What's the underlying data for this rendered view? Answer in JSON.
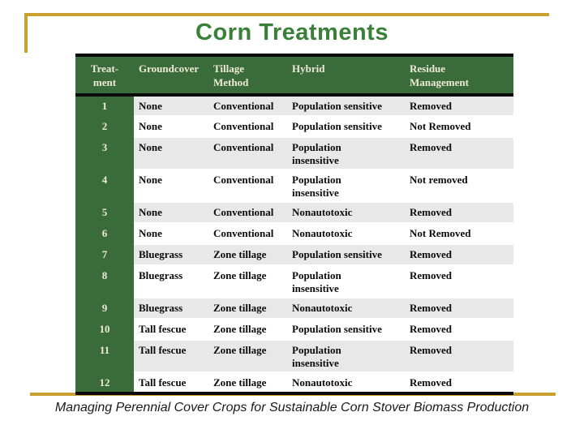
{
  "title": "Corn Treatments",
  "caption": "Managing Perennial Cover Crops for Sustainable Corn Stover Biomass Production",
  "table": {
    "headers": {
      "treatment": "Treat-\nment",
      "groundcover": "Groundcover",
      "tillage": "Tillage\nMethod",
      "hybrid": "Hybrid",
      "residue": "Residue\nManagement"
    },
    "rows": [
      {
        "treatment": "1",
        "groundcover": "None",
        "tillage": "Conventional",
        "hybrid": "Population sensitive",
        "residue": "Removed"
      },
      {
        "treatment": "2",
        "groundcover": "None",
        "tillage": "Conventional",
        "hybrid": "Population sensitive",
        "residue": "Not Removed"
      },
      {
        "treatment": "3",
        "groundcover": "None",
        "tillage": "Conventional",
        "hybrid": "Population\ninsensitive",
        "residue": "Removed"
      },
      {
        "treatment": "4",
        "groundcover": "None",
        "tillage": "Conventional",
        "hybrid": "Population\ninsensitive",
        "residue": "Not removed"
      },
      {
        "treatment": "5",
        "groundcover": "None",
        "tillage": "Conventional",
        "hybrid": "Nonautotoxic",
        "residue": "Removed"
      },
      {
        "treatment": "6",
        "groundcover": "None",
        "tillage": "Conventional",
        "hybrid": "Nonautotoxic",
        "residue": "Not Removed"
      },
      {
        "treatment": "7",
        "groundcover": "Bluegrass",
        "tillage": "Zone tillage",
        "hybrid": "Population sensitive",
        "residue": "Removed"
      },
      {
        "treatment": "8",
        "groundcover": "Bluegrass",
        "tillage": "Zone tillage",
        "hybrid": "Population\ninsensitive",
        "residue": "Removed"
      },
      {
        "treatment": "9",
        "groundcover": "Bluegrass",
        "tillage": "Zone tillage",
        "hybrid": "Nonautotoxic",
        "residue": "Removed"
      },
      {
        "treatment": "10",
        "groundcover": "Tall fescue",
        "tillage": "Zone tillage",
        "hybrid": "Population sensitive",
        "residue": "Removed"
      },
      {
        "treatment": "11",
        "groundcover": "Tall fescue",
        "tillage": "Zone tillage",
        "hybrid": "Population\ninsensitive",
        "residue": "Removed"
      },
      {
        "treatment": "12",
        "groundcover": "Tall fescue",
        "tillage": "Zone tillage",
        "hybrid": "Nonautotoxic",
        "residue": "Removed"
      }
    ]
  },
  "colors": {
    "title_green": "#3a8038",
    "table_green": "#3a6b3a",
    "header_text": "#eee9d8",
    "row_alt_gray": "#e8e8e8",
    "accent_gold": "#c8a12e",
    "line_black": "#0a0a0a",
    "body_text": "#0b0b0b",
    "caption_text": "#1a1a1a"
  }
}
